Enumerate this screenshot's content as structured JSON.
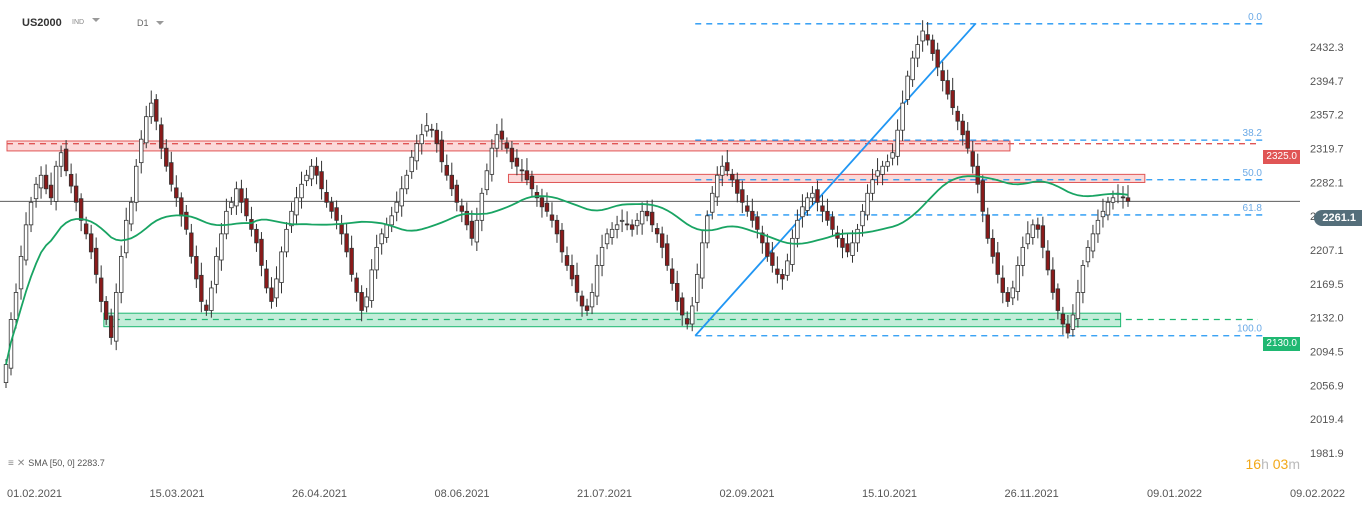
{
  "header": {
    "symbol": "US2000",
    "symbol_sub": "IND",
    "timeframe": "D1"
  },
  "sma_legend": {
    "text": "SMA  [50,  0]  2283.7"
  },
  "countdown": {
    "hours": "16",
    "h": "h",
    "minutes": "03",
    "m": "m"
  },
  "current_price": {
    "label": "2261.1"
  },
  "colors": {
    "up": "#ffffff",
    "down": "#8b1a1a",
    "sma": "#19a463",
    "resistance": "#e05555",
    "support": "#1fb872",
    "fib": "#2196f3",
    "badge": "#546e7a"
  },
  "chart_data": {
    "type": "candlestick",
    "title": "US2000",
    "timeframe": "D1",
    "ylim": [
      1981.9,
      2470
    ],
    "y_ticks": [
      "2432.3",
      "2394.7",
      "2357.2",
      "2319.7",
      "2282.1",
      "2244.6",
      "2207.1",
      "2169.5",
      "2132.0",
      "2094.5",
      "2056.9",
      "2019.4",
      "1981.9"
    ],
    "x_ticks": [
      "01.02.2021",
      "15.03.2021",
      "26.04.2021",
      "08.06.2021",
      "21.07.2021",
      "02.09.2021",
      "15.10.2021",
      "26.11.2021",
      "09.01.2022",
      "09.02.2022"
    ],
    "x_range": [
      "2021-02-01",
      "2022-02-09"
    ],
    "current_price": 2261.1,
    "indicator": {
      "name": "SMA",
      "period": 50,
      "shift": 0,
      "value": 2283.7
    },
    "resistance_zones": [
      {
        "label": "2325.0",
        "level": 2325.0,
        "from": "2021-02-01",
        "to": "2021-11-18",
        "top": 2328,
        "bottom": 2317
      },
      {
        "label": "",
        "level": 2286.0,
        "from": "2021-06-26",
        "to": "2021-12-27",
        "top": 2291,
        "bottom": 2282
      }
    ],
    "support_zones": [
      {
        "label": "2130.0",
        "level": 2130.0,
        "from": "2021-03-01",
        "to": "2021-12-20",
        "top": 2137,
        "bottom": 2122
      }
    ],
    "fibonacci": {
      "swing_low": {
        "date": "2021-08-19",
        "price": 2112
      },
      "swing_high": {
        "date": "2021-11-08",
        "price": 2458
      },
      "levels": [
        {
          "label": "0.0",
          "price": 2458
        },
        {
          "label": "38.2",
          "price": 2329
        },
        {
          "label": "50.0",
          "price": 2285
        },
        {
          "label": "61.8",
          "price": 2246
        },
        {
          "label": "100.0",
          "price": 2112
        }
      ]
    },
    "series_close": [
      2080,
      2130,
      2160,
      2200,
      2235,
      2260,
      2280,
      2290,
      2275,
      2265,
      2300,
      2315,
      2295,
      2278,
      2260,
      2240,
      2225,
      2205,
      2180,
      2150,
      2130,
      2110,
      2160,
      2200,
      2240,
      2260,
      2300,
      2330,
      2355,
      2370,
      2350,
      2320,
      2300,
      2280,
      2265,
      2245,
      2230,
      2200,
      2175,
      2150,
      2140,
      2165,
      2200,
      2225,
      2250,
      2260,
      2275,
      2260,
      2245,
      2230,
      2215,
      2190,
      2165,
      2150,
      2175,
      2205,
      2230,
      2250,
      2265,
      2280,
      2290,
      2300,
      2290,
      2275,
      2260,
      2250,
      2240,
      2225,
      2205,
      2180,
      2160,
      2140,
      2155,
      2185,
      2210,
      2225,
      2235,
      2245,
      2260,
      2275,
      2290,
      2310,
      2325,
      2335,
      2345,
      2340,
      2325,
      2305,
      2290,
      2275,
      2260,
      2250,
      2235,
      2220,
      2240,
      2270,
      2295,
      2320,
      2335,
      2330,
      2320,
      2305,
      2300,
      2295,
      2285,
      2275,
      2265,
      2255,
      2250,
      2240,
      2225,
      2205,
      2190,
      2175,
      2160,
      2145,
      2140,
      2160,
      2190,
      2210,
      2225,
      2230,
      2235,
      2240,
      2235,
      2230,
      2240,
      2250,
      2245,
      2235,
      2225,
      2210,
      2190,
      2170,
      2150,
      2135,
      2125,
      2145,
      2180,
      2215,
      2245,
      2270,
      2290,
      2300,
      2295,
      2285,
      2270,
      2260,
      2250,
      2240,
      2230,
      2215,
      2200,
      2190,
      2180,
      2175,
      2195,
      2220,
      2240,
      2255,
      2265,
      2270,
      2260,
      2250,
      2240,
      2230,
      2220,
      2210,
      2205,
      2215,
      2230,
      2250,
      2270,
      2285,
      2295,
      2300,
      2305,
      2315,
      2340,
      2370,
      2400,
      2420,
      2435,
      2450,
      2440,
      2425,
      2410,
      2395,
      2380,
      2365,
      2350,
      2335,
      2320,
      2300,
      2280,
      2250,
      2220,
      2200,
      2180,
      2160,
      2150,
      2165,
      2190,
      2210,
      2225,
      2235,
      2230,
      2210,
      2185,
      2160,
      2140,
      2125,
      2115,
      2135,
      2160,
      2190,
      2210,
      2225,
      2240,
      2250,
      2260,
      2265,
      2270,
      2265,
      2261
    ]
  }
}
